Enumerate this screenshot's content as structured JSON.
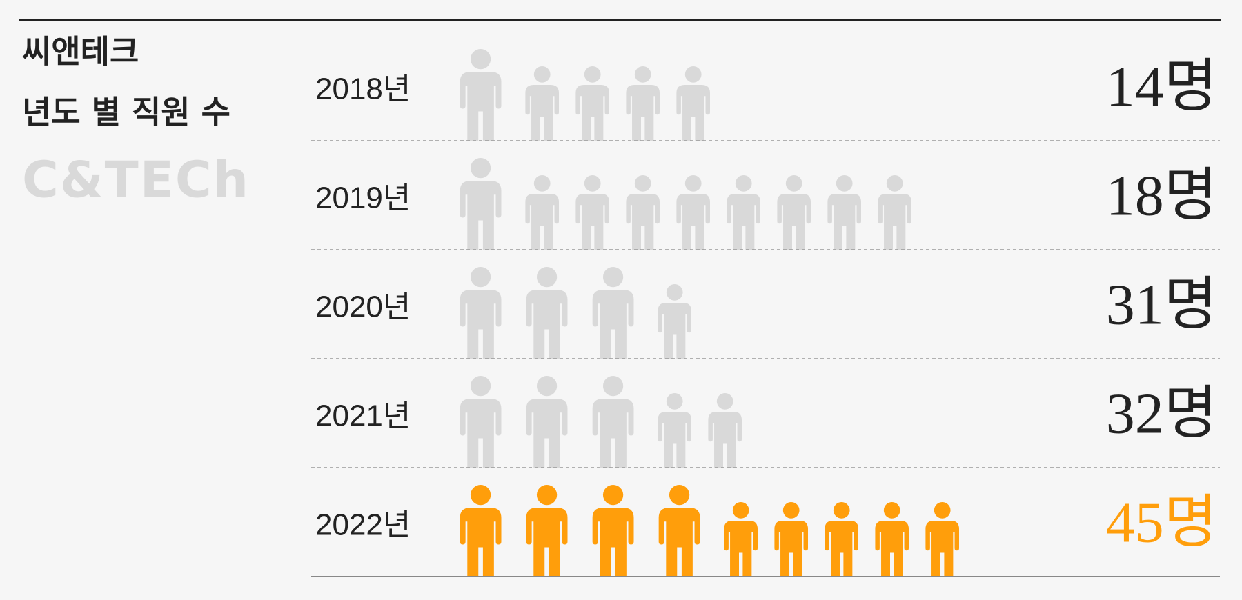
{
  "chart_data": {
    "type": "pictogram",
    "title": "씨앤테크",
    "subtitle": "년도 별 직원 수",
    "logo": "C&TECh",
    "categories": [
      "2018년",
      "2019년",
      "2020년",
      "2021년",
      "2022년"
    ],
    "values": [
      14,
      18,
      31,
      32,
      45
    ],
    "value_labels": [
      "14명",
      "18명",
      "31명",
      "32명",
      "45명"
    ],
    "icon_values": [
      10,
      1
    ],
    "colors": [
      "#d9d9d9",
      "#d9d9d9",
      "#d9d9d9",
      "#d9d9d9",
      "#ff9e0b"
    ],
    "label_colors": [
      "#222222",
      "#222222",
      "#222222",
      "#222222",
      "#ff9e0b"
    ]
  }
}
